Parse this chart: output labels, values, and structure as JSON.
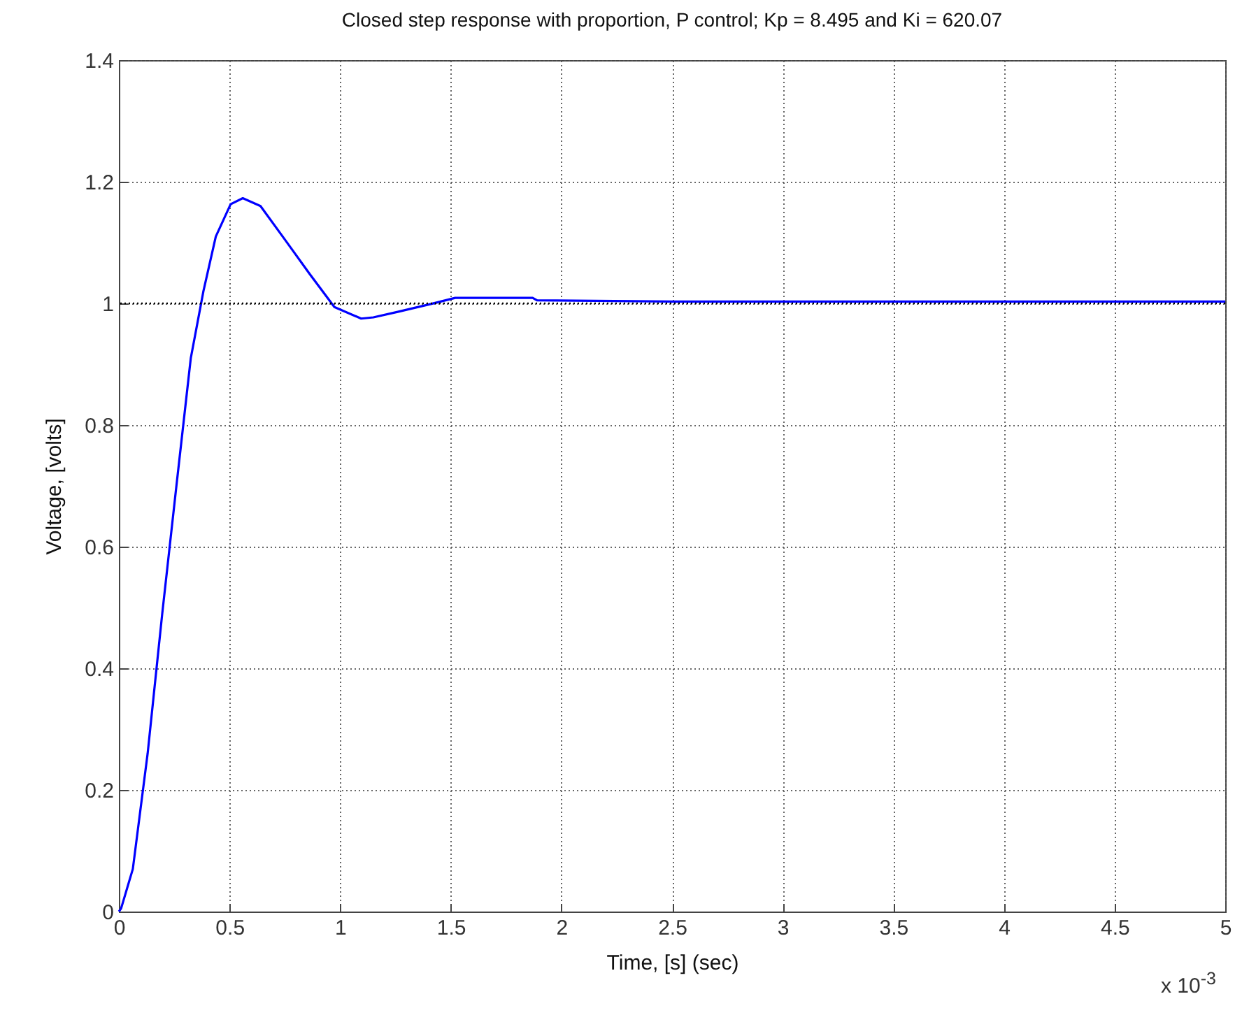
{
  "chart_data": {
    "type": "line",
    "title": "Closed step response with proportion, P control; Kp = 8.495 and Ki = 620.07",
    "xlabel": "Time, [s] (sec)",
    "ylabel": "Voltage, [volts]",
    "annotations": [
      "x 10$^{-3}$"
    ],
    "x": [
      0,
      0.01,
      0.063,
      0.13,
      0.196,
      0.26,
      0.325,
      0.382,
      0.438,
      0.505,
      0.56,
      0.64,
      0.75,
      0.863,
      0.974,
      1.095,
      1.15,
      1.26,
      1.41,
      1.52,
      1.87,
      1.89,
      2.5,
      3,
      4,
      5
    ],
    "series": [
      {
        "color": "#0000ff",
        "values": [
          0,
          0.005,
          0.07,
          0.26,
          0.49,
          0.7,
          0.91,
          1.02,
          1.11,
          1.163,
          1.173,
          1.16,
          1.105,
          1.048,
          0.994,
          0.975,
          0.977,
          0.986,
          0.999,
          1.009,
          1.009,
          1.005,
          1.003,
          1.003,
          1.003,
          1.003
        ]
      }
    ],
    "xlim": [
      0,
      5
    ],
    "xticks": [
      0,
      0.5,
      1,
      1.5,
      2,
      2.5,
      3,
      3.5,
      4,
      4.5,
      5
    ],
    "ylim": [
      0,
      1.4
    ],
    "yticks": [
      0,
      0.2,
      0.4,
      0.6,
      0.8,
      1,
      1.2,
      1.4
    ],
    "grid": true,
    "ref_lines": [
      {
        "axis": "y",
        "value": 1,
        "color": "#000000",
        "line_style": "dotted"
      }
    ],
    "line_style": "solid",
    "marker": "none"
  }
}
